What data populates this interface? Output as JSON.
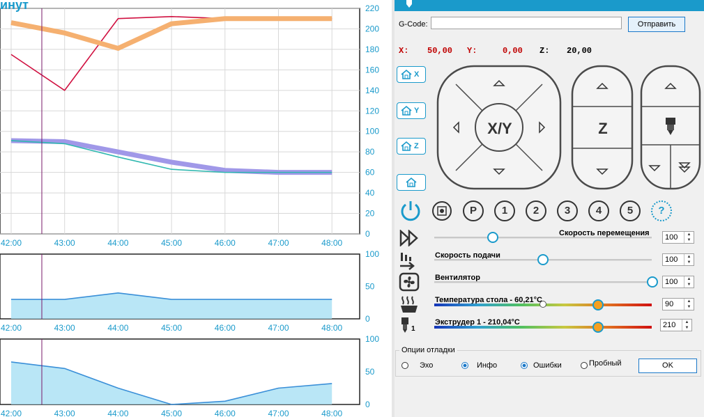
{
  "chart_title_fragment": "инут",
  "charts": {
    "temp": {
      "right_ticks": [
        "220",
        "200",
        "180",
        "160",
        "140",
        "120",
        "100",
        "80",
        "60",
        "40",
        "20",
        "0"
      ],
      "x_ticks": [
        "42:00",
        "43:00",
        "44:00",
        "45:00",
        "46:00",
        "47:00",
        "48:00"
      ]
    },
    "mid": {
      "right_ticks": [
        "100",
        "50",
        "0"
      ],
      "x_ticks": [
        "42:00",
        "43:00",
        "44:00",
        "45:00",
        "46:00",
        "47:00",
        "48:00"
      ]
    },
    "bottom": {
      "right_ticks": [
        "100",
        "50",
        "0"
      ],
      "x_ticks": [
        "42:00",
        "43:00",
        "44:00",
        "45:00",
        "46:00",
        "47:00",
        "48:00"
      ]
    }
  },
  "chart_data": [
    {
      "type": "line",
      "x": [
        "42:00",
        "43:00",
        "44:00",
        "45:00",
        "46:00",
        "47:00",
        "48:00"
      ],
      "ylim": [
        0,
        220
      ],
      "series": [
        {
          "values": [
            175,
            140,
            210,
            212,
            210,
            210,
            210
          ],
          "color": "#d01040"
        },
        {
          "values": [
            206,
            196,
            181,
            205,
            210,
            210,
            210
          ],
          "color": "#f5b070"
        },
        {
          "values": [
            91,
            90,
            80,
            70,
            62,
            60,
            60
          ],
          "color": "#a098e8"
        },
        {
          "values": [
            91,
            88,
            75,
            63,
            60,
            60,
            60
          ],
          "color": "#30b8b0"
        }
      ]
    },
    {
      "type": "area",
      "x": [
        "42:00",
        "43:00",
        "44:00",
        "45:00",
        "46:00",
        "47:00",
        "48:00"
      ],
      "ylim": [
        0,
        100
      ],
      "series": [
        {
          "values": [
            30,
            30,
            40,
            30,
            30,
            30,
            30
          ],
          "color": "#3a8fd8"
        }
      ]
    },
    {
      "type": "area",
      "x": [
        "42:00",
        "43:00",
        "44:00",
        "45:00",
        "46:00",
        "47:00",
        "48:00"
      ],
      "ylim": [
        0,
        100
      ],
      "series": [
        {
          "values": [
            65,
            55,
            25,
            0,
            5,
            25,
            32
          ],
          "color": "#3a8fd8"
        }
      ]
    }
  ],
  "panel": {
    "gcode_label": "G-Code:",
    "gcode_value": "",
    "send_label": "Отправить",
    "x_label": "X:",
    "x_value": "50,00",
    "y_label": "Y:",
    "y_value": "0,00",
    "z_label": "Z:",
    "z_value": "20,00",
    "home_x": "X",
    "home_y": "Y",
    "home_z": "Z",
    "xy_label": "X/Y",
    "z_pad_label": "Z",
    "mode_buttons": [
      "P",
      "1",
      "2",
      "3",
      "4",
      "5",
      "?"
    ],
    "sliders": {
      "move_speed_label": "Скорость перемещения",
      "move_speed_value": "100",
      "feed_speed_label": "Скорость подачи",
      "feed_speed_value": "100",
      "fan_label": "Вентилятор",
      "fan_value": "100",
      "bed_label": "Температура стола - 60,21°C",
      "bed_value": "90",
      "extruder_label": "Экструдер 1 - 210,04°C",
      "extruder_value": "210",
      "extruder_index": "1"
    },
    "debug": {
      "group_label": "Опции отладки",
      "echo_label": "Эхо",
      "info_label": "Инфо",
      "errors_label": "Ошибки",
      "dry_label": "Пробный",
      "ok_label": "OK"
    },
    "colors": {
      "accent": "#1a9acb",
      "coord_red": "#c00000"
    }
  }
}
